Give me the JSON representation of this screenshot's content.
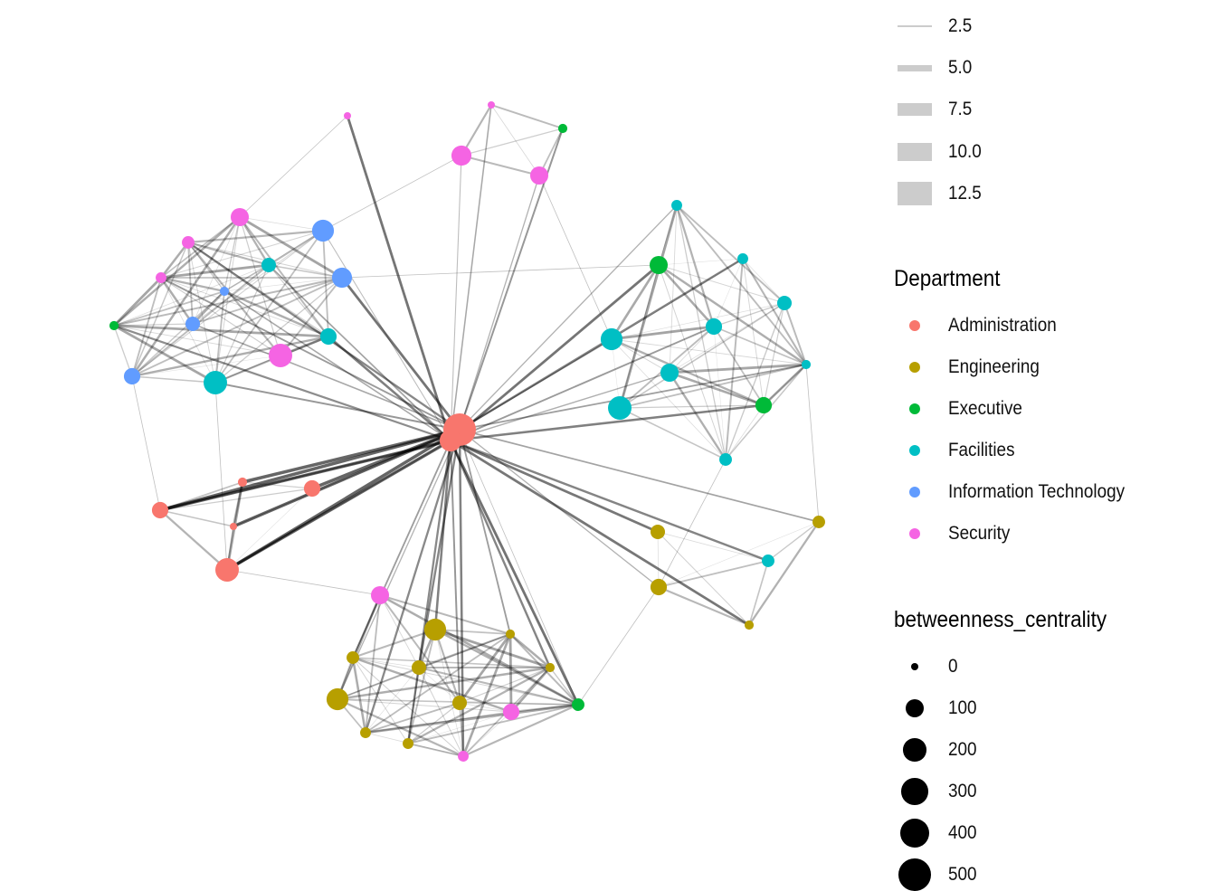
{
  "legend_edge_weight": {
    "items": [
      {
        "label": "2.5",
        "value": 2.5
      },
      {
        "label": "5.0",
        "value": 5.0
      },
      {
        "label": "7.5",
        "value": 7.5
      },
      {
        "label": "10.0",
        "value": 10.0
      },
      {
        "label": "12.5",
        "value": 12.5
      }
    ]
  },
  "legend_department": {
    "title": "Department",
    "items": [
      {
        "label": "Administration",
        "color": "#F8766D"
      },
      {
        "label": "Engineering",
        "color": "#B79F00"
      },
      {
        "label": "Executive",
        "color": "#00BA38"
      },
      {
        "label": "Facilities",
        "color": "#00BFC4"
      },
      {
        "label": "Information Technology",
        "color": "#619CFF"
      },
      {
        "label": "Security",
        "color": "#F564E3"
      }
    ]
  },
  "legend_betweenness": {
    "title": "betweenness_centrality",
    "items": [
      {
        "label": "0",
        "value": 0
      },
      {
        "label": "100",
        "value": 100
      },
      {
        "label": "200",
        "value": 200
      },
      {
        "label": "300",
        "value": 300
      },
      {
        "label": "400",
        "value": 400
      },
      {
        "label": "500",
        "value": 500
      }
    ]
  },
  "nodes": [
    {
      "dept": "Administration",
      "betweenness": 510
    },
    {
      "dept": "Administration",
      "betweenness": 170
    },
    {
      "dept": "Security",
      "betweenness": 0
    },
    {
      "dept": "Executive",
      "betweenness": 3
    },
    {
      "dept": "Security",
      "betweenness": 130
    },
    {
      "dept": "Security",
      "betweenness": 94
    },
    {
      "dept": "Security",
      "betweenness": 0
    },
    {
      "dept": "Security",
      "betweenness": 94
    },
    {
      "dept": "Information Technology",
      "betweenness": 170
    },
    {
      "dept": "Security",
      "betweenness": 23
    },
    {
      "dept": "Facilities",
      "betweenness": 42
    },
    {
      "dept": "Security",
      "betweenness": 10
    },
    {
      "dept": "Information Technology",
      "betweenness": 3
    },
    {
      "dept": "Information Technology",
      "betweenness": 130
    },
    {
      "dept": "Executive",
      "betweenness": 3
    },
    {
      "dept": "Information Technology",
      "betweenness": 42
    },
    {
      "dept": "Facilities",
      "betweenness": 67
    },
    {
      "dept": "Security",
      "betweenness": 210
    },
    {
      "dept": "Information Technology",
      "betweenness": 67
    },
    {
      "dept": "Facilities",
      "betweenness": 210
    },
    {
      "dept": "Administration",
      "betweenness": 3
    },
    {
      "dept": "Administration",
      "betweenness": 67
    },
    {
      "dept": "Administration",
      "betweenness": 67
    },
    {
      "dept": "Administration",
      "betweenness": 0
    },
    {
      "dept": "Administration",
      "betweenness": 210
    },
    {
      "dept": "Facilities",
      "betweenness": 10
    },
    {
      "dept": "Executive",
      "betweenness": 94
    },
    {
      "dept": "Facilities",
      "betweenness": 10
    },
    {
      "dept": "Facilities",
      "betweenness": 42
    },
    {
      "dept": "Facilities",
      "betweenness": 170
    },
    {
      "dept": "Facilities",
      "betweenness": 67
    },
    {
      "dept": "Facilities",
      "betweenness": 3
    },
    {
      "dept": "Facilities",
      "betweenness": 94
    },
    {
      "dept": "Facilities",
      "betweenness": 210
    },
    {
      "dept": "Executive",
      "betweenness": 67
    },
    {
      "dept": "Facilities",
      "betweenness": 23
    },
    {
      "dept": "Engineering",
      "betweenness": 42
    },
    {
      "dept": "Engineering",
      "betweenness": 23
    },
    {
      "dept": "Facilities",
      "betweenness": 23
    },
    {
      "dept": "Engineering",
      "betweenness": 67
    },
    {
      "dept": "Engineering",
      "betweenness": 3
    },
    {
      "dept": "Security",
      "betweenness": 94
    },
    {
      "dept": "Engineering",
      "betweenness": 170
    },
    {
      "dept": "Engineering",
      "betweenness": 3
    },
    {
      "dept": "Engineering",
      "betweenness": 23
    },
    {
      "dept": "Engineering",
      "betweenness": 42
    },
    {
      "dept": "Engineering",
      "betweenness": 3
    },
    {
      "dept": "Engineering",
      "betweenness": 170
    },
    {
      "dept": "Engineering",
      "betweenness": 42
    },
    {
      "dept": "Security",
      "betweenness": 67
    },
    {
      "dept": "Executive",
      "betweenness": 23
    },
    {
      "dept": "Engineering",
      "betweenness": 10
    },
    {
      "dept": "Engineering",
      "betweenness": 10
    },
    {
      "dept": "Security",
      "betweenness": 10
    }
  ]
}
